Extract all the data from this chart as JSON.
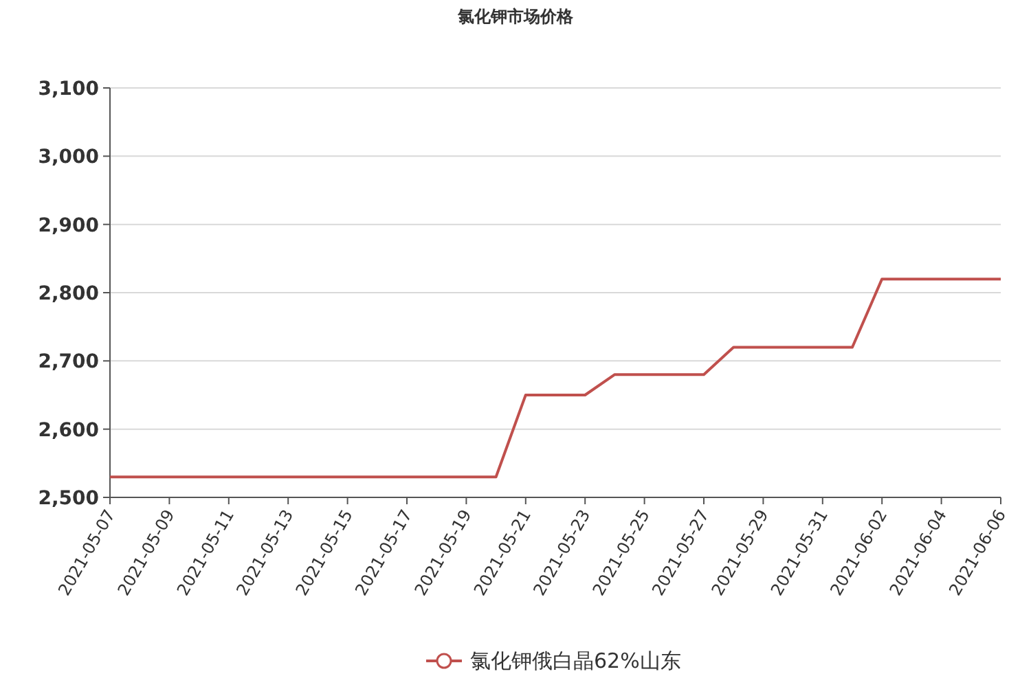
{
  "chart_data": {
    "type": "line",
    "title": "氯化钾市场价格",
    "x": [
      "2021-05-07",
      "2021-05-08",
      "2021-05-09",
      "2021-05-10",
      "2021-05-11",
      "2021-05-12",
      "2021-05-13",
      "2021-05-14",
      "2021-05-15",
      "2021-05-16",
      "2021-05-17",
      "2021-05-18",
      "2021-05-19",
      "2021-05-20",
      "2021-05-21",
      "2021-05-22",
      "2021-05-23",
      "2021-05-24",
      "2021-05-25",
      "2021-05-26",
      "2021-05-27",
      "2021-05-28",
      "2021-05-29",
      "2021-05-30",
      "2021-05-31",
      "2021-06-01",
      "2021-06-02",
      "2021-06-03",
      "2021-06-04",
      "2021-06-05",
      "2021-06-06"
    ],
    "series": [
      {
        "name": "氯化钾俄白晶62%山东",
        "color": "#c0504d",
        "values": [
          2530,
          2530,
          2530,
          2530,
          2530,
          2530,
          2530,
          2530,
          2530,
          2530,
          2530,
          2530,
          2530,
          2530,
          2650,
          2650,
          2650,
          2680,
          2680,
          2680,
          2680,
          2720,
          2720,
          2720,
          2720,
          2720,
          2820,
          2820,
          2820,
          2820,
          2820
        ]
      }
    ],
    "xlim": [
      "2021-05-07",
      "2021-06-06"
    ],
    "xticks": [
      "2021-05-07",
      "2021-05-09",
      "2021-05-11",
      "2021-05-13",
      "2021-05-15",
      "2021-05-17",
      "2021-05-19",
      "2021-05-21",
      "2021-05-23",
      "2021-05-25",
      "2021-05-27",
      "2021-05-29",
      "2021-05-31",
      "2021-06-02",
      "2021-06-04",
      "2021-06-06"
    ],
    "ylim": [
      2500,
      3100
    ],
    "yticks": [
      {
        "value": 2500,
        "label": "2,500"
      },
      {
        "value": 2600,
        "label": "2,600"
      },
      {
        "value": 2700,
        "label": "2,700"
      },
      {
        "value": 2800,
        "label": "2,800"
      },
      {
        "value": 2900,
        "label": "2,900"
      },
      {
        "value": 3000,
        "label": "3,000"
      },
      {
        "value": 3100,
        "label": "3,100"
      }
    ],
    "grid": "y",
    "legend": "bottom",
    "line_style": "solid"
  }
}
